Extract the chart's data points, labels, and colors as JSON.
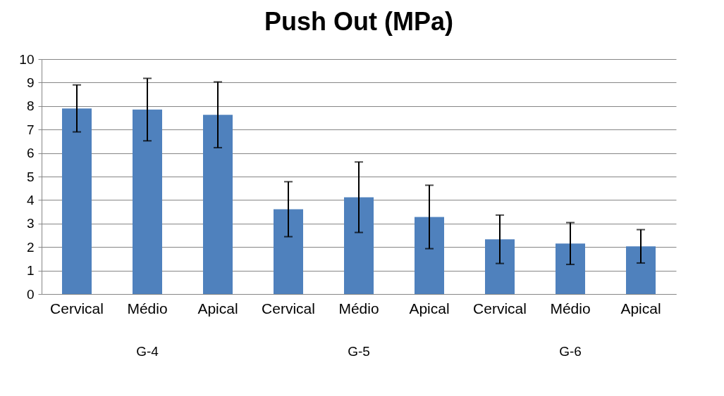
{
  "chart_data": {
    "type": "bar",
    "title": "Push Out (MPa)",
    "categories": [
      "Cervical",
      "Médio",
      "Apical",
      "Cervical",
      "Médio",
      "Apical",
      "Cervical",
      "Médio",
      "Apical"
    ],
    "series": [
      {
        "color": "#4f81bd",
        "values": [
          7.9,
          7.85,
          7.63,
          3.61,
          4.12,
          3.28,
          2.33,
          2.15,
          2.03
        ],
        "errors": [
          1.0,
          1.33,
          1.4,
          1.17,
          1.5,
          1.35,
          1.03,
          0.89,
          0.71
        ]
      }
    ],
    "ylim": [
      0,
      10
    ],
    "yticks": [
      0,
      1,
      2,
      3,
      4,
      5,
      6,
      7,
      8,
      9,
      10
    ],
    "grid": "y",
    "annotations": [
      "G-4",
      "G-5",
      "G-6"
    ]
  }
}
